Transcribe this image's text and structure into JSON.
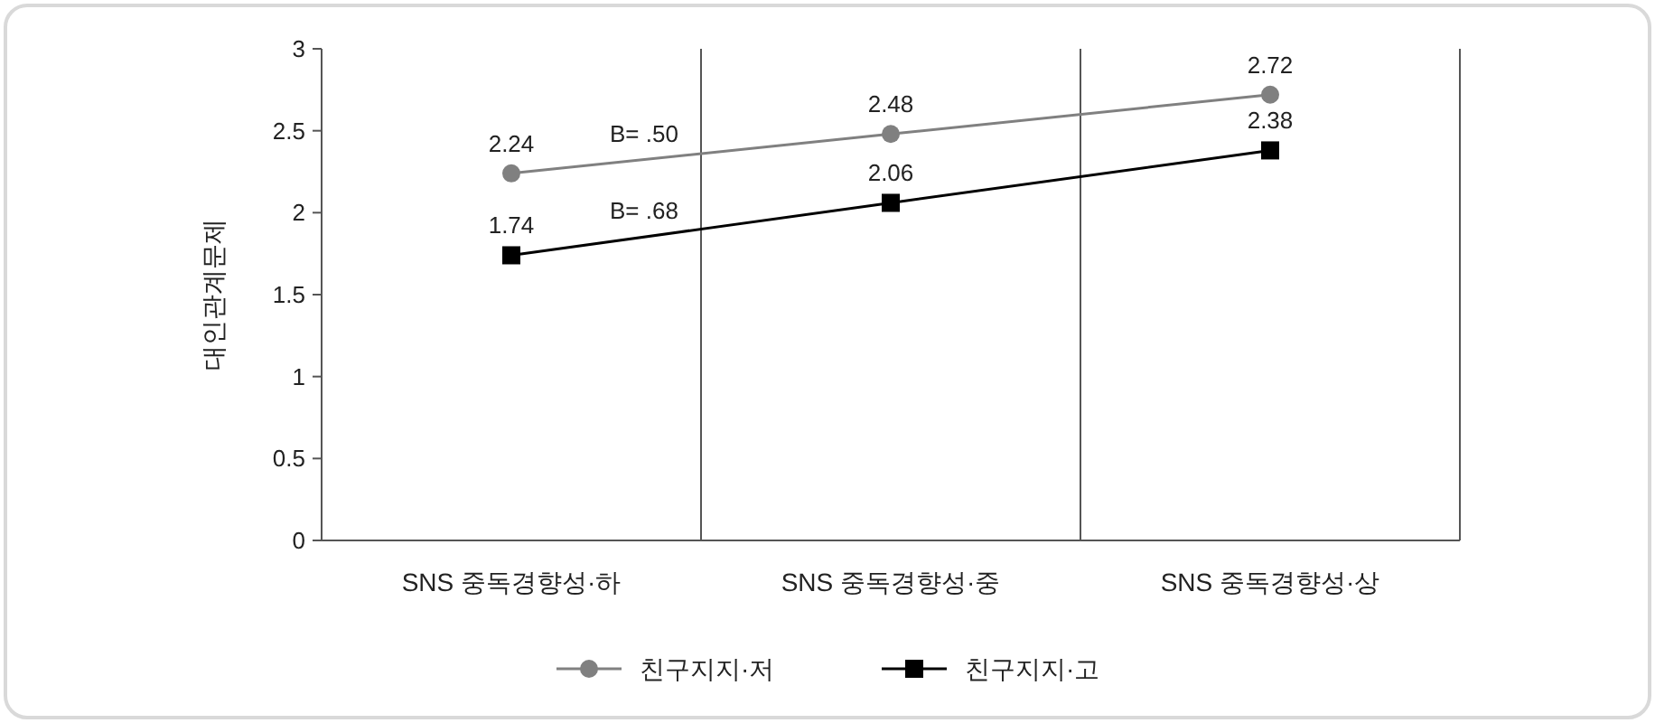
{
  "chart_data": {
    "type": "line",
    "ylabel": "대인관계문제",
    "categories": [
      "SNS 중독경향성·하",
      "SNS 중독경향성·중",
      "SNS 중독경향성·상"
    ],
    "series": [
      {
        "name": "친구지지·저",
        "color": "#808080",
        "marker": "circle",
        "values": [
          2.24,
          2.48,
          2.72
        ]
      },
      {
        "name": "친구지지·고",
        "color": "#000000",
        "marker": "square",
        "values": [
          1.74,
          2.06,
          2.38
        ]
      }
    ],
    "ylim": [
      0,
      3
    ],
    "yticks": [
      0,
      0.5,
      1,
      1.5,
      2,
      2.5,
      3
    ],
    "data_labels": true,
    "grid": false,
    "legend": "bottom",
    "annotations": [
      "B= .50",
      "B= .68"
    ]
  }
}
